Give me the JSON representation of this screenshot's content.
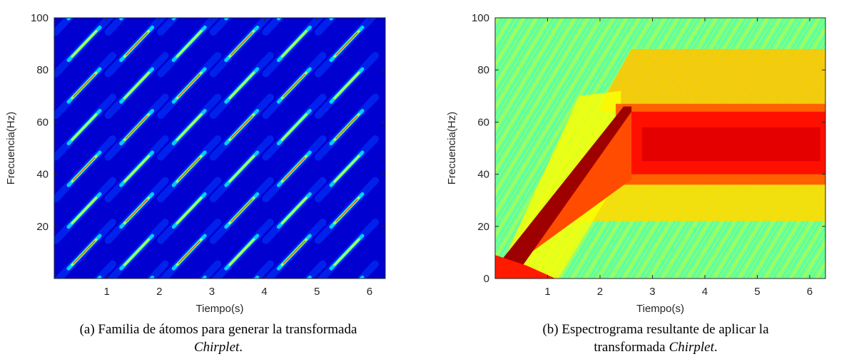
{
  "chart_data": [
    {
      "type": "heatmap",
      "colormap": "jet",
      "xlabel": "Tiempo(s)",
      "ylabel": "Frecuencia(Hz)",
      "xlim": [
        0,
        6.3
      ],
      "ylim": [
        0,
        100
      ],
      "xticks": [
        1,
        2,
        3,
        4,
        5,
        6
      ],
      "yticks": [
        20,
        40,
        60,
        80,
        100
      ],
      "caption": {
        "line1": "(a) Familia de átomos para generar la transformada",
        "italic": "Chirplet",
        "end": "."
      }
    },
    {
      "type": "spectrogram",
      "colormap": "jet",
      "xlabel": "Tiempo(s)",
      "ylabel": "Frecuencia(Hz)",
      "xlim": [
        0,
        6.3
      ],
      "ylim": [
        0,
        100
      ],
      "xticks": [
        1,
        2,
        3,
        4,
        5,
        6
      ],
      "yticks": [
        0,
        20,
        40,
        60,
        80,
        100
      ],
      "caption": {
        "line1": "(b) Espectrograma resultante de aplicar la",
        "line2": "transformada",
        "italic": "Chirplet",
        "end": "."
      }
    }
  ]
}
